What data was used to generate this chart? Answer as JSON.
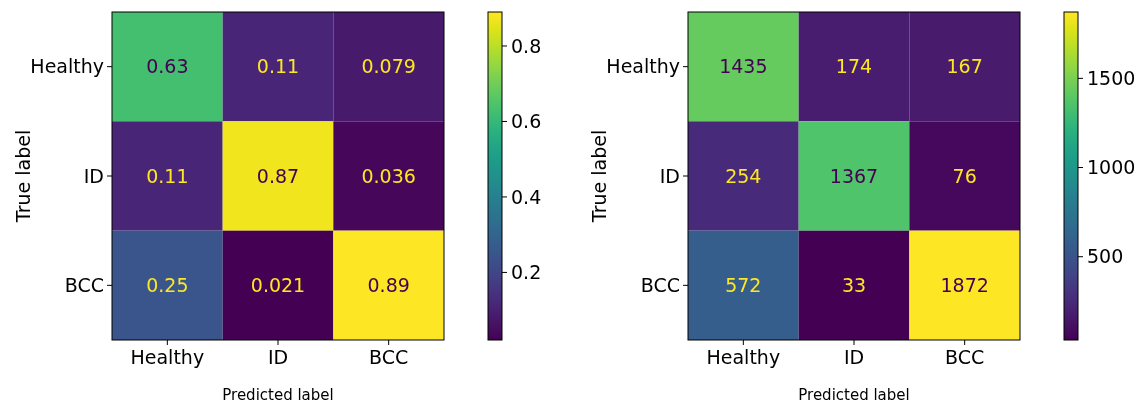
{
  "chart_data": [
    {
      "type": "heatmap",
      "xlabel": "Predicted label",
      "ylabel": "True label",
      "categories": [
        "Healthy",
        "ID",
        "BCC"
      ],
      "y_categories": [
        "Healthy",
        "ID",
        "BCC"
      ],
      "cells": [
        [
          0.63,
          0.11,
          0.079
        ],
        [
          0.11,
          0.87,
          0.036
        ],
        [
          0.25,
          0.021,
          0.89
        ]
      ],
      "clim": [
        0.021,
        0.89
      ],
      "cticks": [
        0.2,
        0.4,
        0.6,
        0.8
      ],
      "data_labels": true
    },
    {
      "type": "heatmap",
      "xlabel": "Predicted label",
      "ylabel": "True label",
      "categories": [
        "Healthy",
        "ID",
        "BCC"
      ],
      "y_categories": [
        "Healthy",
        "ID",
        "BCC"
      ],
      "cells": [
        [
          1435,
          174,
          167
        ],
        [
          254,
          1367,
          76
        ],
        [
          572,
          33,
          1872
        ]
      ],
      "clim": [
        33,
        1872
      ],
      "cticks": [
        500,
        1000,
        1500
      ],
      "data_labels": true
    }
  ]
}
